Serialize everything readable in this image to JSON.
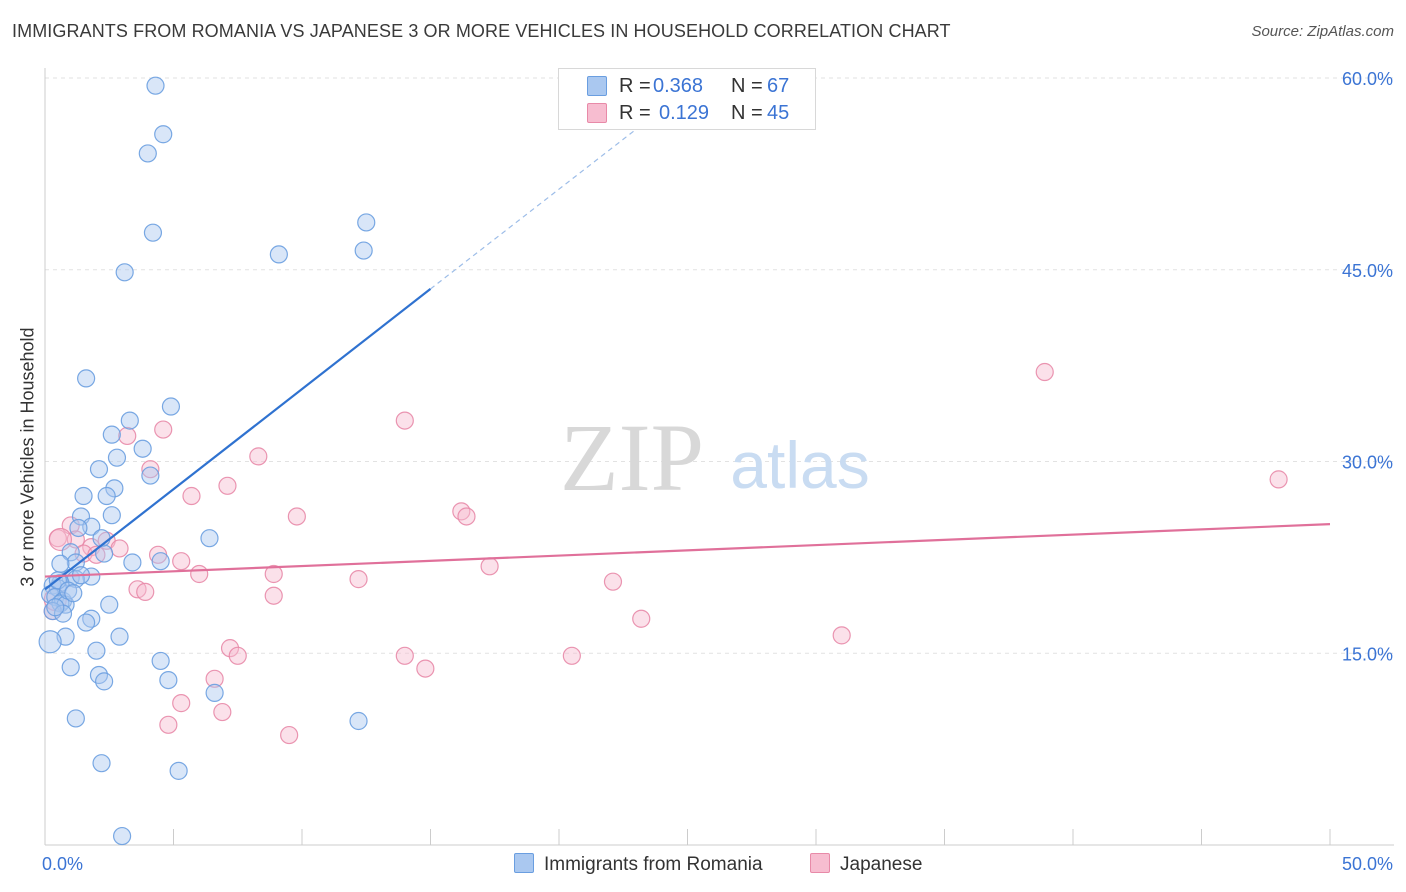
{
  "title": "IMMIGRANTS FROM ROMANIA VS JAPANESE 3 OR MORE VEHICLES IN HOUSEHOLD CORRELATION CHART",
  "source": "Source: ZipAtlas.com",
  "watermark": {
    "zip": "ZIP",
    "atlas": "atlas"
  },
  "legend_top": {
    "rows": [
      {
        "r_label": "R =",
        "r_value": "0.368",
        "n_label": "N =",
        "n_value": "67"
      },
      {
        "r_label": "R =",
        "r_value": "0.129",
        "n_label": "N =",
        "n_value": "45"
      }
    ]
  },
  "legend_bottom": {
    "items": [
      {
        "label": "Immigrants from Romania"
      },
      {
        "label": "Japanese"
      }
    ]
  },
  "colors": {
    "romania_fill": "#aac8f0",
    "romania_stroke": "#6a9ee0",
    "romania_line": "#2f72d0",
    "japanese_fill": "#f7bdd0",
    "japanese_stroke": "#e88aa8",
    "japanese_line": "#e0709a",
    "tick_text": "#3b74d4",
    "grid": "#e2e2e2"
  },
  "chart_data": {
    "type": "scatter",
    "title": "IMMIGRANTS FROM ROMANIA VS JAPANESE 3 OR MORE VEHICLES IN HOUSEHOLD CORRELATION CHART",
    "xlabel": "",
    "ylabel": "3 or more Vehicles in Household",
    "xlim": [
      0,
      50
    ],
    "ylim": [
      0,
      60
    ],
    "x_tick_labels": [
      "0.0%",
      "50.0%"
    ],
    "y_ticks": [
      {
        "value": 15,
        "label": "15.0%"
      },
      {
        "value": 30,
        "label": "30.0%"
      },
      {
        "value": 45,
        "label": "45.0%"
      },
      {
        "value": 60,
        "label": "60.0%"
      }
    ],
    "series": [
      {
        "name": "Immigrants from Romania",
        "R": 0.368,
        "N": 67,
        "trend": {
          "x0": 0,
          "y0": 20.0,
          "x1": 15.0,
          "y1": 43.5,
          "dash_x1": 23.2,
          "dash_y1": 56.3
        },
        "points": [
          [
            4.3,
            59.4
          ],
          [
            4.6,
            55.6
          ],
          [
            4.0,
            54.1
          ],
          [
            4.2,
            47.9
          ],
          [
            12.5,
            48.7
          ],
          [
            12.4,
            46.5
          ],
          [
            9.1,
            46.2
          ],
          [
            3.1,
            44.8
          ],
          [
            1.6,
            36.5
          ],
          [
            4.9,
            34.3
          ],
          [
            3.3,
            33.2
          ],
          [
            2.6,
            32.1
          ],
          [
            3.8,
            31.0
          ],
          [
            2.8,
            30.3
          ],
          [
            2.1,
            29.4
          ],
          [
            4.1,
            28.9
          ],
          [
            2.7,
            27.9
          ],
          [
            1.5,
            27.3
          ],
          [
            2.4,
            27.3
          ],
          [
            2.6,
            25.8
          ],
          [
            1.4,
            25.7
          ],
          [
            1.8,
            24.9
          ],
          [
            1.3,
            24.8
          ],
          [
            6.4,
            24.0
          ],
          [
            2.2,
            24.0
          ],
          [
            2.3,
            22.8
          ],
          [
            1.0,
            22.9
          ],
          [
            1.2,
            22.1
          ],
          [
            3.4,
            22.1
          ],
          [
            0.6,
            22.0
          ],
          [
            4.5,
            22.2
          ],
          [
            1.0,
            20.9
          ],
          [
            1.8,
            21.0
          ],
          [
            1.2,
            20.8
          ],
          [
            0.6,
            20.5
          ],
          [
            0.3,
            20.3
          ],
          [
            0.5,
            20.1
          ],
          [
            0.2,
            19.6
          ],
          [
            0.4,
            19.4
          ],
          [
            0.7,
            19.1
          ],
          [
            0.6,
            18.9
          ],
          [
            0.8,
            18.8
          ],
          [
            2.5,
            18.8
          ],
          [
            0.3,
            18.3
          ],
          [
            0.7,
            18.1
          ],
          [
            1.8,
            17.7
          ],
          [
            1.6,
            17.4
          ],
          [
            0.8,
            16.3
          ],
          [
            2.9,
            16.3
          ],
          [
            0.2,
            15.9
          ],
          [
            2.0,
            15.2
          ],
          [
            4.5,
            14.4
          ],
          [
            1.0,
            13.9
          ],
          [
            2.1,
            13.3
          ],
          [
            2.3,
            12.8
          ],
          [
            4.8,
            12.9
          ],
          [
            6.6,
            11.9
          ],
          [
            1.2,
            9.9
          ],
          [
            12.2,
            9.7
          ],
          [
            2.2,
            6.4
          ],
          [
            5.2,
            5.8
          ],
          [
            3.0,
            0.7
          ],
          [
            0.5,
            20.7
          ],
          [
            1.4,
            21.1
          ],
          [
            0.9,
            19.9
          ],
          [
            0.4,
            18.6
          ],
          [
            1.1,
            19.7
          ]
        ]
      },
      {
        "name": "Japanese",
        "R": 0.129,
        "N": 45,
        "trend": {
          "x0": 0,
          "y0": 21.0,
          "x1": 50.0,
          "y1": 25.1
        },
        "points": [
          [
            38.9,
            37.0
          ],
          [
            14.0,
            33.2
          ],
          [
            3.2,
            32.0
          ],
          [
            4.6,
            32.5
          ],
          [
            8.3,
            30.4
          ],
          [
            4.1,
            29.4
          ],
          [
            48.0,
            28.6
          ],
          [
            7.1,
            28.1
          ],
          [
            5.7,
            27.3
          ],
          [
            16.2,
            26.1
          ],
          [
            9.8,
            25.7
          ],
          [
            16.4,
            25.7
          ],
          [
            1.0,
            25.0
          ],
          [
            0.5,
            24.0
          ],
          [
            1.2,
            23.9
          ],
          [
            2.4,
            23.8
          ],
          [
            1.8,
            23.3
          ],
          [
            2.9,
            23.2
          ],
          [
            1.5,
            22.8
          ],
          [
            2.0,
            22.7
          ],
          [
            4.4,
            22.7
          ],
          [
            5.3,
            22.2
          ],
          [
            17.3,
            21.8
          ],
          [
            6.0,
            21.2
          ],
          [
            8.9,
            21.2
          ],
          [
            12.2,
            20.8
          ],
          [
            22.1,
            20.6
          ],
          [
            3.6,
            20.0
          ],
          [
            3.9,
            19.8
          ],
          [
            8.9,
            19.5
          ],
          [
            23.2,
            17.7
          ],
          [
            31.0,
            16.4
          ],
          [
            7.2,
            15.4
          ],
          [
            7.5,
            14.8
          ],
          [
            14.0,
            14.8
          ],
          [
            20.5,
            14.8
          ],
          [
            14.8,
            13.8
          ],
          [
            6.6,
            13.0
          ],
          [
            5.3,
            11.1
          ],
          [
            6.9,
            10.4
          ],
          [
            4.8,
            9.4
          ],
          [
            9.5,
            8.6
          ],
          [
            0.3,
            18.3
          ],
          [
            0.4,
            19.2
          ],
          [
            0.6,
            23.9
          ]
        ]
      }
    ]
  }
}
